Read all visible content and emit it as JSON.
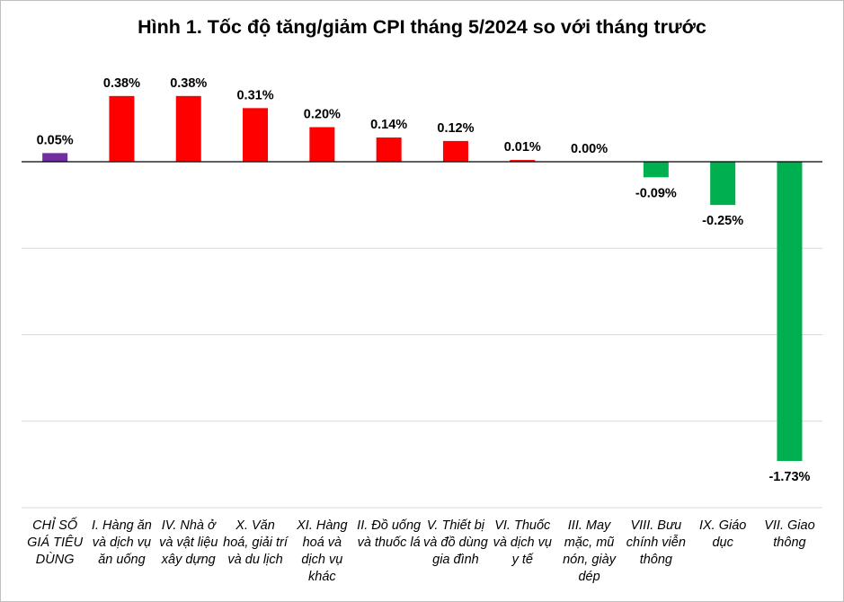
{
  "chart_data": {
    "type": "bar",
    "title": "Hình 1. Tốc độ tăng/giảm CPI tháng 5/2024 so với tháng trước",
    "xlabel": "",
    "ylabel": "",
    "ylim": [
      -2.0,
      0.5
    ],
    "grid": true,
    "gridlines": [
      -2.0,
      -1.5,
      -1.0,
      -0.5,
      0.0
    ],
    "categories": [
      "CHỈ SỐ GIÁ TIÊU DÙNG",
      "I. Hàng ăn và dịch vụ ăn uống",
      "IV. Nhà ở và vật liệu xây dựng",
      "X. Văn hoá, giải trí và du lịch",
      "XI. Hàng hoá và dịch vụ khác",
      "II. Đồ uống và thuốc lá",
      "V. Thiết bị và đồ dùng gia đình",
      "VI. Thuốc và dịch vụ y tế",
      "III. May mặc, mũ nón, giày dép",
      "VIII. Bưu chính viễn thông",
      "IX. Giáo dục",
      "VII. Giao thông"
    ],
    "values": [
      0.05,
      0.38,
      0.38,
      0.31,
      0.2,
      0.14,
      0.12,
      0.01,
      0.0,
      -0.09,
      -0.25,
      -1.73
    ],
    "data_labels": [
      "0.05%",
      "0.38%",
      "0.38%",
      "0.31%",
      "0.20%",
      "0.14%",
      "0.12%",
      "0.01%",
      "0.00%",
      "-0.09%",
      "-0.25%",
      "-1.73%"
    ],
    "colors": {
      "total": "#7030A0",
      "positive": "#FF0000",
      "negative": "#00B050",
      "grid": "#D9D9D9",
      "axis": "#000000"
    }
  }
}
